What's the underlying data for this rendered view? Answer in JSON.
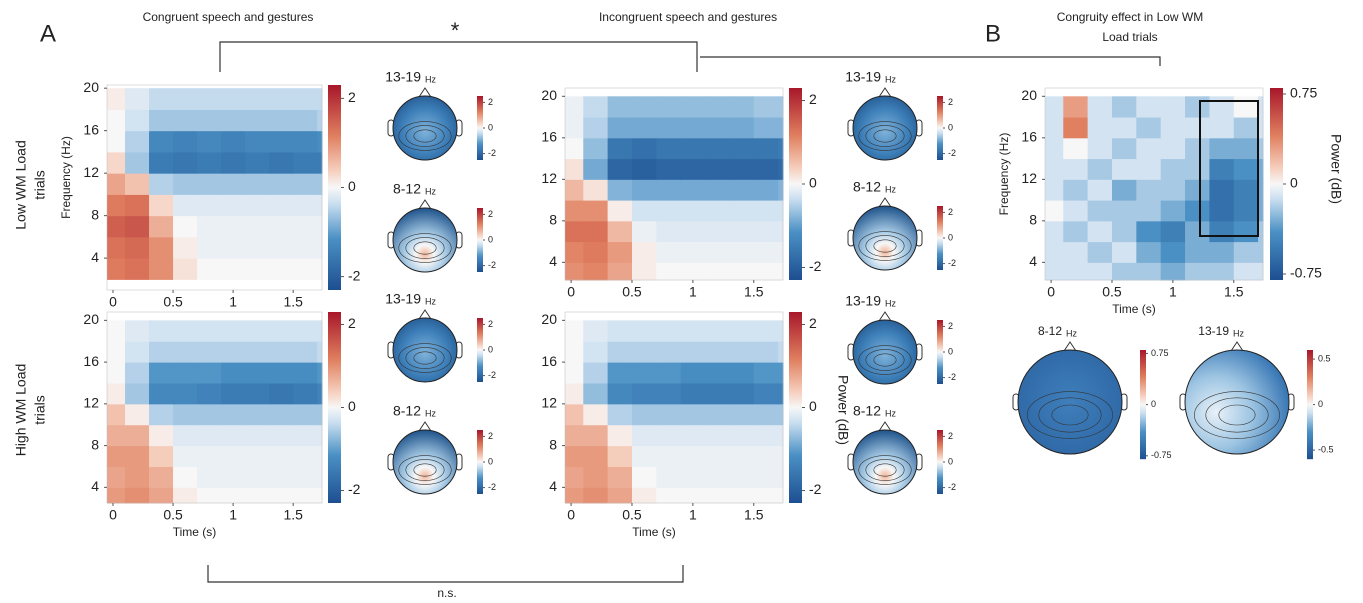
{
  "panel_letters": [
    "A",
    "B"
  ],
  "row_labels": [
    [
      "Low WM Load",
      "trials"
    ],
    [
      "High WM Load",
      "trials"
    ]
  ],
  "power_label": "Power (dB)",
  "significance": [
    "*",
    "n.s."
  ],
  "chart_data": [
    {
      "type": "heatmap",
      "title": [
        "Congruent speech and gestures"
      ],
      "ylabel": "Frequency (Hz)",
      "x": [
        0,
        0.2,
        0.4,
        0.6,
        0.8,
        1.0,
        1.2,
        1.4,
        1.6,
        1.8
      ],
      "y": [
        3,
        5,
        7,
        9,
        11,
        13,
        15,
        17,
        19
      ],
      "values": [
        [
          1.2,
          1.3,
          1.0,
          0.2,
          0,
          0,
          0,
          0,
          0,
          0
        ],
        [
          1.3,
          1.4,
          1.0,
          0.1,
          -0.1,
          -0.1,
          -0.1,
          -0.1,
          -0.1,
          -0.1
        ],
        [
          1.5,
          1.6,
          0.7,
          0,
          -0.1,
          -0.1,
          -0.1,
          -0.1,
          -0.1,
          -0.1
        ],
        [
          1.2,
          1.3,
          0.3,
          -0.2,
          -0.2,
          -0.2,
          -0.2,
          -0.2,
          -0.2,
          -0.2
        ],
        [
          0.8,
          0.5,
          -0.5,
          -0.6,
          -0.6,
          -0.6,
          -0.6,
          -0.6,
          -0.6,
          -0.6
        ],
        [
          0.3,
          -0.6,
          -1.5,
          -1.6,
          -1.5,
          -1.6,
          -1.5,
          -1.6,
          -1.5,
          -1.5
        ],
        [
          0,
          -0.5,
          -1.3,
          -1.4,
          -1.3,
          -1.4,
          -1.3,
          -1.3,
          -1.3,
          -1.2
        ],
        [
          0,
          -0.3,
          -0.6,
          -0.6,
          -0.6,
          -0.6,
          -0.6,
          -0.6,
          -0.6,
          -0.5
        ],
        [
          0.1,
          -0.2,
          -0.4,
          -0.4,
          -0.4,
          -0.4,
          -0.4,
          -0.4,
          -0.4,
          -0.4
        ]
      ],
      "xlim": [
        -0.05,
        1.74
      ],
      "ylim": [
        1,
        20.3
      ],
      "xticks": [
        0,
        0.5,
        1,
        1.5
      ],
      "yticks": [
        4,
        8,
        12,
        16,
        20
      ],
      "clim": [
        -2.3,
        2.3
      ],
      "cticks": [
        2,
        0,
        -2
      ]
    },
    {
      "type": "heatmap",
      "title": [
        "Incongruent speech and gestures"
      ],
      "x": [
        0,
        0.2,
        0.4,
        0.6,
        0.8,
        1.0,
        1.2,
        1.4,
        1.6,
        1.8
      ],
      "y": [
        3,
        5,
        7,
        9,
        11,
        13,
        15,
        17,
        19
      ],
      "values": [
        [
          1.0,
          1.1,
          0.8,
          0.1,
          0,
          0,
          0,
          0,
          0,
          0
        ],
        [
          1.1,
          1.2,
          0.9,
          0.1,
          -0.1,
          -0.1,
          -0.1,
          -0.1,
          -0.1,
          -0.1
        ],
        [
          1.3,
          1.3,
          0.6,
          -0.1,
          -0.2,
          -0.2,
          -0.2,
          -0.2,
          -0.2,
          -0.2
        ],
        [
          1.0,
          1.0,
          0.1,
          -0.3,
          -0.3,
          -0.3,
          -0.3,
          -0.3,
          -0.3,
          -0.3
        ],
        [
          0.6,
          0.2,
          -0.8,
          -0.9,
          -0.9,
          -0.9,
          -0.9,
          -0.9,
          -0.9,
          -0.8
        ],
        [
          0.2,
          -0.9,
          -1.9,
          -2.0,
          -1.9,
          -1.9,
          -1.9,
          -1.9,
          -1.9,
          -1.8
        ],
        [
          0,
          -0.7,
          -1.6,
          -1.7,
          -1.6,
          -1.6,
          -1.6,
          -1.6,
          -1.6,
          -1.5
        ],
        [
          -0.1,
          -0.5,
          -0.9,
          -0.9,
          -0.9,
          -0.9,
          -0.9,
          -0.9,
          -0.8,
          -0.8
        ],
        [
          -0.1,
          -0.4,
          -0.7,
          -0.7,
          -0.7,
          -0.7,
          -0.7,
          -0.7,
          -0.6,
          -0.6
        ]
      ],
      "xlim": [
        -0.05,
        1.74
      ],
      "ylim": [
        2.3,
        20.8
      ],
      "xticks": [
        0,
        0.5,
        1,
        1.5
      ],
      "yticks": [
        4,
        8,
        12,
        16,
        20
      ],
      "clim": [
        -2.3,
        2.3
      ],
      "cticks": [
        2,
        0,
        -2
      ]
    },
    {
      "type": "heatmap",
      "xlabel": "Time (s)",
      "x": [
        0,
        0.2,
        0.4,
        0.6,
        0.8,
        1.0,
        1.2,
        1.4,
        1.6,
        1.8
      ],
      "y": [
        3,
        5,
        7,
        9,
        11,
        13,
        15,
        17,
        19
      ],
      "values": [
        [
          0.9,
          1.0,
          0.8,
          0.1,
          0,
          0,
          0,
          0,
          0,
          0
        ],
        [
          0.8,
          0.9,
          0.7,
          0,
          -0.1,
          -0.1,
          -0.1,
          -0.1,
          -0.1,
          -0.1
        ],
        [
          0.9,
          0.9,
          0.4,
          -0.1,
          -0.1,
          -0.1,
          -0.1,
          -0.1,
          -0.1,
          -0.1
        ],
        [
          0.7,
          0.7,
          0.1,
          -0.2,
          -0.2,
          -0.2,
          -0.2,
          -0.2,
          -0.2,
          -0.2
        ],
        [
          0.5,
          0.1,
          -0.5,
          -0.6,
          -0.6,
          -0.6,
          -0.6,
          -0.6,
          -0.6,
          -0.6
        ],
        [
          0.1,
          -0.6,
          -1.3,
          -1.3,
          -1.4,
          -1.5,
          -1.5,
          -1.6,
          -1.5,
          -1.4
        ],
        [
          0,
          -0.5,
          -1.1,
          -1.1,
          -1.1,
          -1.2,
          -1.2,
          -1.2,
          -1.2,
          -1.1
        ],
        [
          0,
          -0.3,
          -0.5,
          -0.5,
          -0.5,
          -0.5,
          -0.5,
          -0.5,
          -0.5,
          -0.4
        ],
        [
          0,
          -0.2,
          -0.3,
          -0.3,
          -0.3,
          -0.3,
          -0.3,
          -0.3,
          -0.3,
          -0.3
        ]
      ],
      "xlim": [
        -0.05,
        1.74
      ],
      "ylim": [
        2.5,
        20.8
      ],
      "xticks": [
        0,
        0.5,
        1,
        1.5
      ],
      "yticks": [
        4,
        8,
        12,
        16,
        20
      ],
      "clim": [
        -2.3,
        2.3
      ],
      "cticks": [
        2,
        0,
        -2
      ]
    },
    {
      "type": "heatmap",
      "xlabel": "Time (s)",
      "x": [
        0,
        0.2,
        0.4,
        0.6,
        0.8,
        1.0,
        1.2,
        1.4,
        1.6,
        1.8
      ],
      "y": [
        3,
        5,
        7,
        9,
        11,
        13,
        15,
        17,
        19
      ],
      "values": [
        [
          0.9,
          1.0,
          0.8,
          0.1,
          0,
          0,
          0,
          0,
          0,
          0
        ],
        [
          0.8,
          0.9,
          0.7,
          0,
          -0.1,
          -0.1,
          -0.1,
          -0.1,
          -0.1,
          -0.1
        ],
        [
          0.9,
          0.9,
          0.4,
          -0.1,
          -0.1,
          -0.1,
          -0.1,
          -0.1,
          -0.1,
          -0.1
        ],
        [
          0.7,
          0.7,
          0.1,
          -0.2,
          -0.2,
          -0.2,
          -0.2,
          -0.2,
          -0.2,
          -0.2
        ],
        [
          0.5,
          0.1,
          -0.5,
          -0.6,
          -0.6,
          -0.6,
          -0.6,
          -0.6,
          -0.6,
          -0.6
        ],
        [
          0.1,
          -0.7,
          -1.3,
          -1.4,
          -1.4,
          -1.5,
          -1.5,
          -1.5,
          -1.4,
          -1.4
        ],
        [
          0,
          -0.5,
          -1.1,
          -1.1,
          -1.1,
          -1.2,
          -1.2,
          -1.2,
          -1.1,
          -1.1
        ],
        [
          0,
          -0.3,
          -0.5,
          -0.5,
          -0.5,
          -0.5,
          -0.5,
          -0.5,
          -0.5,
          -0.4
        ],
        [
          0,
          -0.2,
          -0.3,
          -0.3,
          -0.3,
          -0.3,
          -0.3,
          -0.3,
          -0.3,
          -0.3
        ]
      ],
      "xlim": [
        -0.05,
        1.74
      ],
      "ylim": [
        2.5,
        20.8
      ],
      "xticks": [
        0,
        0.5,
        1,
        1.5
      ],
      "yticks": [
        4,
        8,
        12,
        16,
        20
      ],
      "clim": [
        -2.3,
        2.3
      ],
      "cticks": [
        2,
        0,
        -2
      ]
    },
    {
      "type": "heatmap",
      "title": [
        "Congruity effect in Low WM",
        "Load trials"
      ],
      "xlabel": "Time (s)",
      "ylabel": "Frequency (Hz)",
      "clabel": "Power (dB)",
      "x": [
        0,
        0.2,
        0.4,
        0.6,
        0.8,
        1.0,
        1.2,
        1.4,
        1.6,
        1.8
      ],
      "y": [
        3,
        5,
        7,
        9,
        11,
        13,
        15,
        17,
        19
      ],
      "values": [
        [
          -0.1,
          -0.1,
          -0.1,
          -0.2,
          -0.2,
          -0.3,
          -0.2,
          -0.2,
          -0.1,
          -0.1
        ],
        [
          -0.1,
          -0.1,
          -0.2,
          -0.1,
          -0.3,
          -0.4,
          -0.3,
          -0.3,
          -0.2,
          -0.2
        ],
        [
          -0.1,
          -0.2,
          -0.1,
          -0.2,
          -0.4,
          -0.5,
          -0.3,
          -0.5,
          -0.4,
          -0.2
        ],
        [
          0,
          -0.1,
          -0.2,
          -0.2,
          -0.2,
          -0.3,
          -0.4,
          -0.6,
          -0.5,
          -0.3
        ],
        [
          -0.1,
          -0.2,
          -0.1,
          -0.3,
          -0.2,
          -0.2,
          -0.3,
          -0.6,
          -0.5,
          -0.3
        ],
        [
          -0.1,
          -0.1,
          -0.2,
          -0.1,
          -0.1,
          -0.2,
          -0.2,
          -0.5,
          -0.4,
          -0.3
        ],
        [
          -0.1,
          0,
          -0.1,
          -0.2,
          -0.1,
          -0.1,
          -0.2,
          -0.3,
          -0.3,
          -0.2
        ],
        [
          -0.1,
          0.4,
          -0.1,
          -0.1,
          -0.2,
          -0.1,
          -0.1,
          -0.1,
          -0.2,
          -0.1
        ],
        [
          -0.1,
          0.3,
          -0.1,
          -0.2,
          -0.1,
          -0.1,
          -0.2,
          -0.1,
          0,
          -0.1
        ]
      ],
      "xlim": [
        -0.05,
        1.74
      ],
      "ylim": [
        2.3,
        20.8
      ],
      "xticks": [
        0,
        0.5,
        1,
        1.5
      ],
      "yticks": [
        4,
        8,
        12,
        16,
        20
      ],
      "clim": [
        -0.8,
        0.8
      ],
      "cticks": [
        0.75,
        0,
        -0.75
      ]
    }
  ],
  "topoplots": [
    {
      "label": "13-19",
      "unit": "Hz",
      "cticks": [
        2,
        0,
        -2
      ],
      "clim": [
        -2.5,
        2.5
      ]
    },
    {
      "label": "8-12",
      "unit": "Hz",
      "cticks": [
        2,
        0,
        -2
      ],
      "clim": [
        -2.5,
        2.5
      ]
    },
    {
      "label": "13-19",
      "unit": "Hz",
      "cticks": [
        2,
        0,
        -2
      ],
      "clim": [
        -2.5,
        2.5
      ]
    },
    {
      "label": "8-12",
      "unit": "Hz",
      "cticks": [
        2,
        0,
        -2
      ],
      "clim": [
        -2.5,
        2.5
      ]
    },
    {
      "label": "13-19",
      "unit": "Hz",
      "cticks": [
        2,
        0,
        -2
      ],
      "clim": [
        -2.5,
        2.5
      ]
    },
    {
      "label": "8-12",
      "unit": "Hz",
      "cticks": [
        2,
        0,
        -2
      ],
      "clim": [
        -2.5,
        2.5
      ]
    },
    {
      "label": "13-19",
      "unit": "Hz",
      "cticks": [
        2,
        0,
        -2
      ],
      "clim": [
        -2.5,
        2.5
      ]
    },
    {
      "label": "8-12",
      "unit": "Hz",
      "cticks": [
        2,
        0,
        -2
      ],
      "clim": [
        -2.5,
        2.5
      ]
    },
    {
      "label": "8-12",
      "unit": "Hz",
      "cticks": [
        0.75,
        0,
        -0.75
      ],
      "clim": [
        -0.8,
        0.8
      ]
    },
    {
      "label": "13-19",
      "unit": "Hz",
      "cticks": [
        0.5,
        0,
        -0.5
      ],
      "clim": [
        -0.6,
        0.6
      ]
    }
  ]
}
